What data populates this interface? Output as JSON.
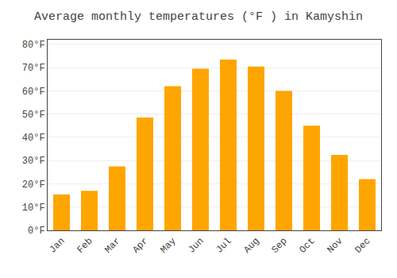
{
  "chart_data": {
    "type": "bar",
    "title": "Average monthly temperatures (°F ) in Kamyshin",
    "categories": [
      "Jan",
      "Feb",
      "Mar",
      "Apr",
      "May",
      "Jun",
      "Jul",
      "Aug",
      "Sep",
      "Oct",
      "Nov",
      "Dec"
    ],
    "values": [
      15.5,
      17,
      27.5,
      48.5,
      62,
      69.5,
      73.5,
      70.5,
      60,
      45,
      32.5,
      22
    ],
    "color": "#FFA500",
    "ylim": [
      0,
      82
    ],
    "yticks": [
      {
        "value": 0,
        "label": "0°F"
      },
      {
        "value": 10,
        "label": "10°F"
      },
      {
        "value": 20,
        "label": "20°F"
      },
      {
        "value": 30,
        "label": "30°F"
      },
      {
        "value": 40,
        "label": "40°F"
      },
      {
        "value": 50,
        "label": "50°F"
      },
      {
        "value": 60,
        "label": "60°F"
      },
      {
        "value": 70,
        "label": "70°F"
      },
      {
        "value": 80,
        "label": "80°F"
      }
    ],
    "grid": true
  }
}
